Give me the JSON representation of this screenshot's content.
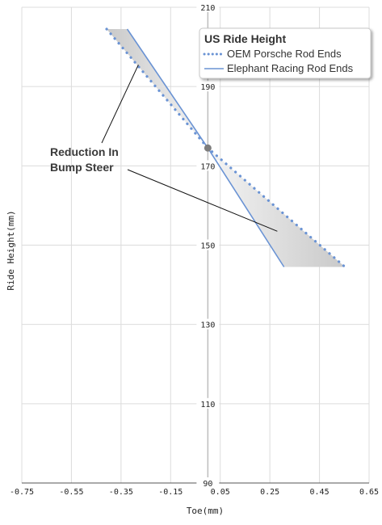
{
  "chart_data": {
    "type": "line",
    "title": "",
    "xlabel": "Toe(mm)",
    "ylabel": "Ride Height(mm)",
    "xlim": [
      -0.75,
      0.65
    ],
    "ylim": [
      90,
      210
    ],
    "xticks": [
      "-0.75",
      "-0.55",
      "-0.35",
      "-0.15",
      "0.05",
      "0.25",
      "0.45",
      "0.65"
    ],
    "yticks": [
      "90",
      "110",
      "130",
      "150",
      "170",
      "190",
      "210"
    ],
    "grid": true,
    "legend": {
      "title": "US Ride Height",
      "placement": "top-right",
      "entries": [
        "OEM Porsche Rod Ends",
        "Elephant Racing Rod Ends"
      ]
    },
    "series": [
      {
        "name": "OEM Porsche Rod Ends",
        "style": "dotted",
        "color": "#6a93d4",
        "x": [
          -0.408,
          0.0,
          0.553
        ],
        "y": [
          204.5,
          174.5,
          144.5
        ]
      },
      {
        "name": "Elephant Racing Rod Ends",
        "style": "solid",
        "color": "#6a93d4",
        "x": [
          -0.325,
          0.0,
          0.307
        ],
        "y": [
          204.5,
          174.5,
          144.5
        ]
      }
    ],
    "crossing_point": {
      "x": 0.0,
      "y": 174.5,
      "color": "#7d7d7d"
    },
    "annotation": {
      "lines": [
        "Reduction In",
        "Bump Steer"
      ],
      "color": "#3a3a3a"
    },
    "shade_color": "#d3d3d3"
  }
}
